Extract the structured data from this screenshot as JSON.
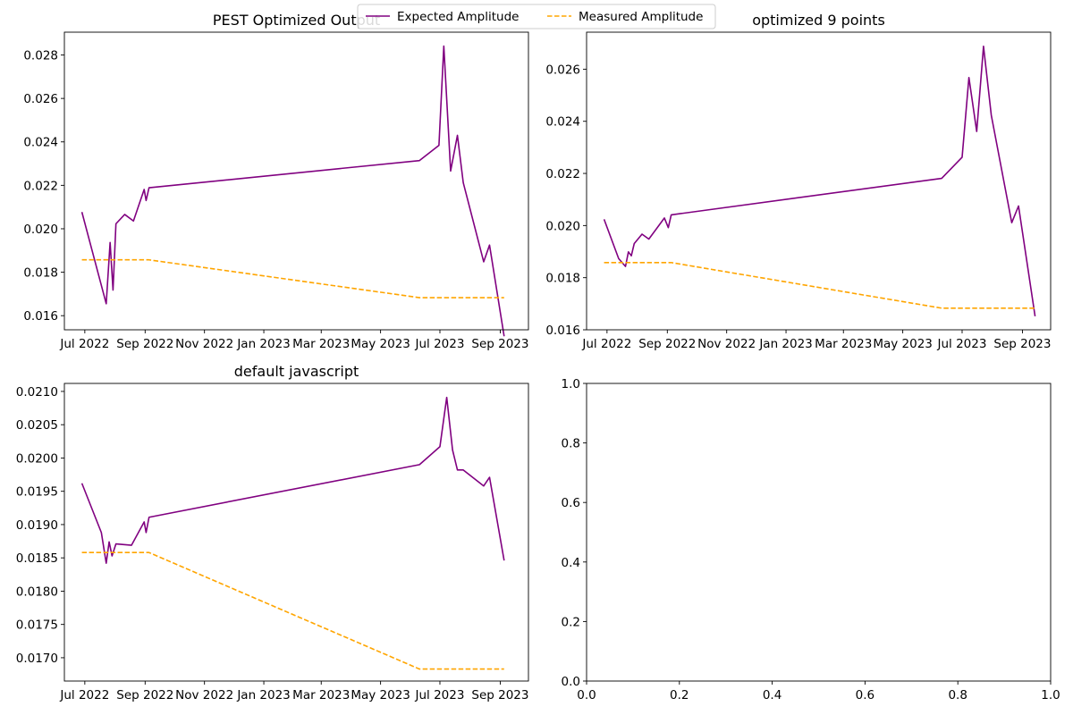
{
  "legend": {
    "entries": [
      {
        "label": "Expected Amplitude",
        "color": "#800080",
        "style": "solid"
      },
      {
        "label": "Measured Amplitude",
        "color": "#ffa500",
        "style": "dashed"
      }
    ],
    "placement": "top-center"
  },
  "chart_data": [
    {
      "type": "line",
      "title": "PEST Optimized Output",
      "xlabel": "",
      "ylabel": "",
      "x_axis": "date",
      "xlim": [
        "2022-06-10",
        "2023-09-30"
      ],
      "ylim": [
        0.01535,
        0.02905
      ],
      "xticks": [
        {
          "date": "2022-07-01",
          "label": "Jul 2022"
        },
        {
          "date": "2022-09-01",
          "label": "Sep 2022"
        },
        {
          "date": "2022-11-01",
          "label": "Nov 2022"
        },
        {
          "date": "2023-01-01",
          "label": "Jan 2023"
        },
        {
          "date": "2023-03-01",
          "label": "Mar 2023"
        },
        {
          "date": "2023-05-01",
          "label": "May 2023"
        },
        {
          "date": "2023-07-01",
          "label": "Jul 2023"
        },
        {
          "date": "2023-09-01",
          "label": "Sep 2023"
        }
      ],
      "yticks": [
        {
          "value": 0.016,
          "label": "0.016"
        },
        {
          "value": 0.018,
          "label": "0.018"
        },
        {
          "value": 0.02,
          "label": "0.020"
        },
        {
          "value": 0.022,
          "label": "0.022"
        },
        {
          "value": 0.024,
          "label": "0.024"
        },
        {
          "value": 0.026,
          "label": "0.026"
        },
        {
          "value": 0.028,
          "label": "0.028"
        }
      ],
      "grid": false,
      "series": [
        {
          "name": "Expected Amplitude",
          "color": "#800080",
          "dash": "solid",
          "points": [
            {
              "x": "2022-06-28",
              "y": 0.02077
            },
            {
              "x": "2022-07-23",
              "y": 0.01655
            },
            {
              "x": "2022-07-27",
              "y": 0.01937
            },
            {
              "x": "2022-07-30",
              "y": 0.01718
            },
            {
              "x": "2022-08-02",
              "y": 0.02023
            },
            {
              "x": "2022-08-11",
              "y": 0.02066
            },
            {
              "x": "2022-08-20",
              "y": 0.02036
            },
            {
              "x": "2022-08-31",
              "y": 0.02181
            },
            {
              "x": "2022-09-02",
              "y": 0.0213
            },
            {
              "x": "2022-09-05",
              "y": 0.02189
            },
            {
              "x": "2023-06-10",
              "y": 0.02314
            },
            {
              "x": "2023-06-30",
              "y": 0.02384
            },
            {
              "x": "2023-07-05",
              "y": 0.02841
            },
            {
              "x": "2023-07-12",
              "y": 0.02266
            },
            {
              "x": "2023-07-19",
              "y": 0.0243
            },
            {
              "x": "2023-07-25",
              "y": 0.02212
            },
            {
              "x": "2023-08-15",
              "y": 0.01848
            },
            {
              "x": "2023-08-21",
              "y": 0.01925
            },
            {
              "x": "2023-09-05",
              "y": 0.01505
            }
          ]
        },
        {
          "name": "Measured Amplitude",
          "color": "#ffa500",
          "dash": "dashed",
          "points": [
            {
              "x": "2022-06-28",
              "y": 0.01857
            },
            {
              "x": "2022-09-05",
              "y": 0.01857
            },
            {
              "x": "2023-06-10",
              "y": 0.01683
            },
            {
              "x": "2023-09-05",
              "y": 0.01683
            }
          ]
        }
      ]
    },
    {
      "type": "line",
      "title": "optimized 9 points",
      "xlabel": "",
      "ylabel": "",
      "x_axis": "date",
      "xlim": [
        "2022-06-10",
        "2023-09-30"
      ],
      "ylim": [
        0.016,
        0.02742
      ],
      "xticks": [
        {
          "date": "2022-07-01",
          "label": "Jul 2022"
        },
        {
          "date": "2022-09-01",
          "label": "Sep 2022"
        },
        {
          "date": "2022-11-01",
          "label": "Nov 2022"
        },
        {
          "date": "2023-01-01",
          "label": "Jan 2023"
        },
        {
          "date": "2023-03-01",
          "label": "Mar 2023"
        },
        {
          "date": "2023-05-01",
          "label": "May 2023"
        },
        {
          "date": "2023-07-01",
          "label": "Jul 2023"
        },
        {
          "date": "2023-09-01",
          "label": "Sep 2023"
        }
      ],
      "yticks": [
        {
          "value": 0.016,
          "label": "0.016"
        },
        {
          "value": 0.018,
          "label": "0.018"
        },
        {
          "value": 0.02,
          "label": "0.020"
        },
        {
          "value": 0.022,
          "label": "0.022"
        },
        {
          "value": 0.024,
          "label": "0.024"
        },
        {
          "value": 0.026,
          "label": "0.026"
        }
      ],
      "grid": false,
      "series": [
        {
          "name": "Expected Amplitude",
          "color": "#800080",
          "dash": "solid",
          "points": [
            {
              "x": "2022-06-28",
              "y": 0.02024
            },
            {
              "x": "2022-07-13",
              "y": 0.01873
            },
            {
              "x": "2022-07-20",
              "y": 0.01843
            },
            {
              "x": "2022-07-23",
              "y": 0.01899
            },
            {
              "x": "2022-07-26",
              "y": 0.01884
            },
            {
              "x": "2022-07-29",
              "y": 0.01931
            },
            {
              "x": "2022-08-06",
              "y": 0.01967
            },
            {
              "x": "2022-08-13",
              "y": 0.01948
            },
            {
              "x": "2022-08-29",
              "y": 0.02029
            },
            {
              "x": "2022-09-02",
              "y": 0.01992
            },
            {
              "x": "2022-09-05",
              "y": 0.02041
            },
            {
              "x": "2023-06-10",
              "y": 0.02181
            },
            {
              "x": "2023-07-01",
              "y": 0.02262
            },
            {
              "x": "2023-07-08",
              "y": 0.02568
            },
            {
              "x": "2023-07-16",
              "y": 0.02361
            },
            {
              "x": "2023-07-23",
              "y": 0.02688
            },
            {
              "x": "2023-07-31",
              "y": 0.02423
            },
            {
              "x": "2023-08-21",
              "y": 0.02011
            },
            {
              "x": "2023-08-28",
              "y": 0.02075
            },
            {
              "x": "2023-09-14",
              "y": 0.01652
            }
          ]
        },
        {
          "name": "Measured Amplitude",
          "color": "#ffa500",
          "dash": "dashed",
          "points": [
            {
              "x": "2022-06-28",
              "y": 0.01858
            },
            {
              "x": "2022-09-05",
              "y": 0.01858
            },
            {
              "x": "2023-06-10",
              "y": 0.01683
            },
            {
              "x": "2023-09-14",
              "y": 0.01683
            }
          ]
        }
      ]
    },
    {
      "type": "line",
      "title": "default javascript",
      "xlabel": "",
      "ylabel": "",
      "x_axis": "date",
      "xlim": [
        "2022-06-10",
        "2023-09-30"
      ],
      "ylim": [
        0.01665,
        0.02112
      ],
      "xticks": [
        {
          "date": "2022-07-01",
          "label": "Jul 2022"
        },
        {
          "date": "2022-09-01",
          "label": "Sep 2022"
        },
        {
          "date": "2022-11-01",
          "label": "Nov 2022"
        },
        {
          "date": "2023-01-01",
          "label": "Jan 2023"
        },
        {
          "date": "2023-03-01",
          "label": "Mar 2023"
        },
        {
          "date": "2023-05-01",
          "label": "May 2023"
        },
        {
          "date": "2023-07-01",
          "label": "Jul 2023"
        },
        {
          "date": "2023-09-01",
          "label": "Sep 2023"
        }
      ],
      "yticks": [
        {
          "value": 0.017,
          "label": "0.0170"
        },
        {
          "value": 0.0175,
          "label": "0.0175"
        },
        {
          "value": 0.018,
          "label": "0.0180"
        },
        {
          "value": 0.0185,
          "label": "0.0185"
        },
        {
          "value": 0.019,
          "label": "0.0190"
        },
        {
          "value": 0.0195,
          "label": "0.0195"
        },
        {
          "value": 0.02,
          "label": "0.0200"
        },
        {
          "value": 0.0205,
          "label": "0.0205"
        },
        {
          "value": 0.021,
          "label": "0.0210"
        }
      ],
      "grid": false,
      "series": [
        {
          "name": "Expected Amplitude",
          "color": "#800080",
          "dash": "solid",
          "points": [
            {
              "x": "2022-06-28",
              "y": 0.01962
            },
            {
              "x": "2022-07-18",
              "y": 0.01888
            },
            {
              "x": "2022-07-23",
              "y": 0.01842
            },
            {
              "x": "2022-07-26",
              "y": 0.01874
            },
            {
              "x": "2022-07-29",
              "y": 0.01853
            },
            {
              "x": "2022-08-02",
              "y": 0.01871
            },
            {
              "x": "2022-08-18",
              "y": 0.01869
            },
            {
              "x": "2022-08-31",
              "y": 0.01904
            },
            {
              "x": "2022-09-02",
              "y": 0.01888
            },
            {
              "x": "2022-09-05",
              "y": 0.01911
            },
            {
              "x": "2023-06-10",
              "y": 0.0199
            },
            {
              "x": "2023-07-01",
              "y": 0.02017
            },
            {
              "x": "2023-07-08",
              "y": 0.02091
            },
            {
              "x": "2023-07-14",
              "y": 0.02012
            },
            {
              "x": "2023-07-19",
              "y": 0.01982
            },
            {
              "x": "2023-07-25",
              "y": 0.01982
            },
            {
              "x": "2023-08-15",
              "y": 0.01958
            },
            {
              "x": "2023-08-21",
              "y": 0.01971
            },
            {
              "x": "2023-09-05",
              "y": 0.01846
            }
          ]
        },
        {
          "name": "Measured Amplitude",
          "color": "#ffa500",
          "dash": "dashed",
          "points": [
            {
              "x": "2022-06-28",
              "y": 0.01858
            },
            {
              "x": "2022-09-05",
              "y": 0.01858
            },
            {
              "x": "2023-06-10",
              "y": 0.01683
            },
            {
              "x": "2023-09-05",
              "y": 0.01683
            }
          ]
        }
      ]
    },
    {
      "type": "line",
      "title": "",
      "xlabel": "",
      "ylabel": "",
      "x_axis": "numeric",
      "xlim": [
        0.0,
        1.0
      ],
      "ylim": [
        0.0,
        1.0
      ],
      "xticks": [
        {
          "value": 0.0,
          "label": "0.0"
        },
        {
          "value": 0.2,
          "label": "0.2"
        },
        {
          "value": 0.4,
          "label": "0.4"
        },
        {
          "value": 0.6,
          "label": "0.6"
        },
        {
          "value": 0.8,
          "label": "0.8"
        },
        {
          "value": 1.0,
          "label": "1.0"
        }
      ],
      "yticks": [
        {
          "value": 0.0,
          "label": "0.0"
        },
        {
          "value": 0.2,
          "label": "0.2"
        },
        {
          "value": 0.4,
          "label": "0.4"
        },
        {
          "value": 0.6,
          "label": "0.6"
        },
        {
          "value": 0.8,
          "label": "0.8"
        },
        {
          "value": 1.0,
          "label": "1.0"
        }
      ],
      "grid": false,
      "series": []
    }
  ]
}
